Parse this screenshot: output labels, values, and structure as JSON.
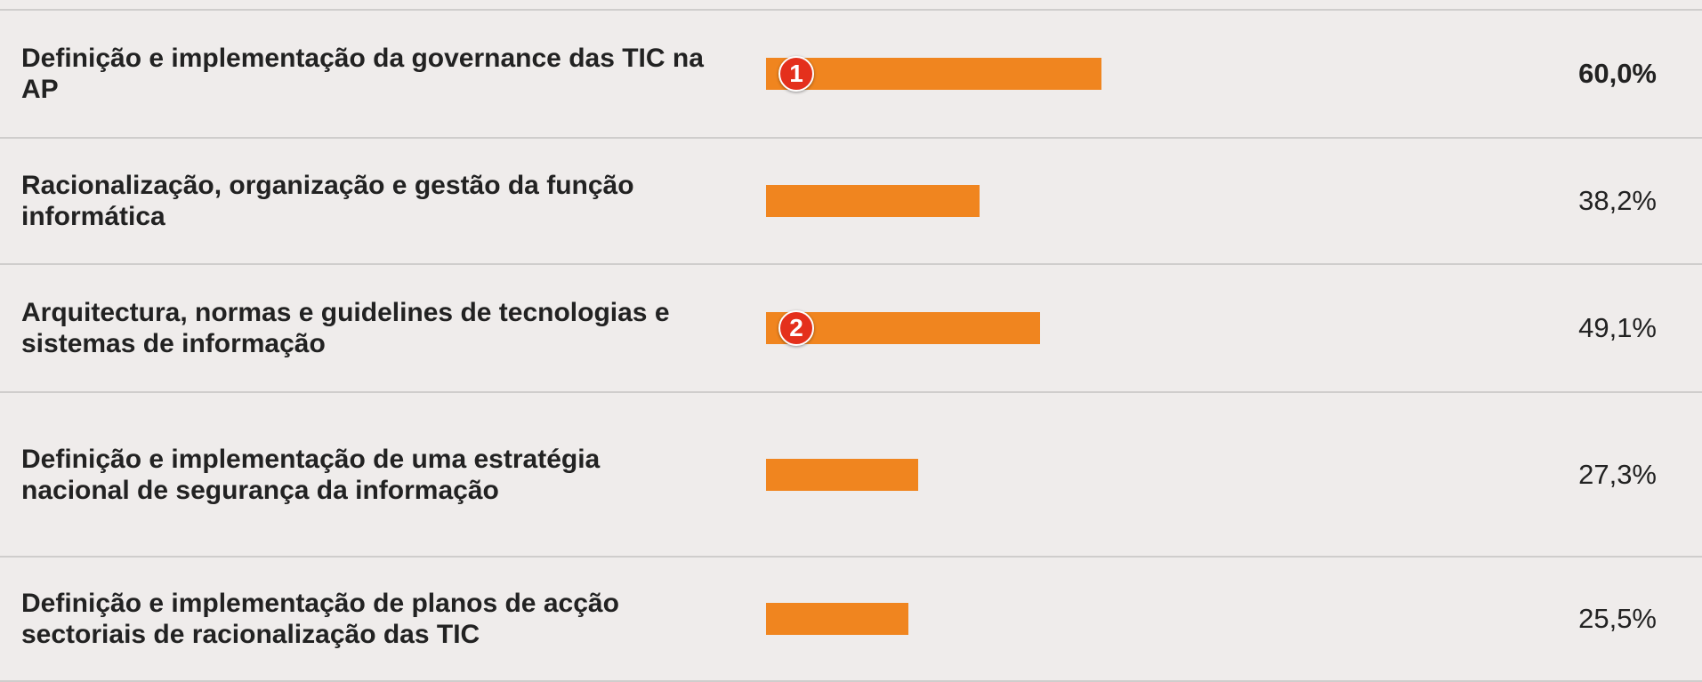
{
  "chart_data": {
    "type": "bar",
    "orientation": "horizontal",
    "categories": [
      "Definição e implementação da governance das TIC na AP",
      "Racionalização, organização e gestão da função informática",
      "Arquitectura, normas e guidelines de tecnologias e sistemas de informação",
      "Definição e implementação de uma estratégia nacional de segurança da informação",
      "Definição e implementação de planos de acção sectoriais de racionalização das TIC"
    ],
    "values": [
      60.0,
      38.2,
      49.1,
      27.3,
      25.5
    ],
    "value_labels": [
      "60,0%",
      "38,2%",
      "49,1%",
      "27,3%",
      "25,5%"
    ],
    "annotations": [
      "1",
      null,
      "2",
      null,
      null
    ],
    "color": "#f0851f",
    "xlim": [
      0,
      100
    ]
  }
}
